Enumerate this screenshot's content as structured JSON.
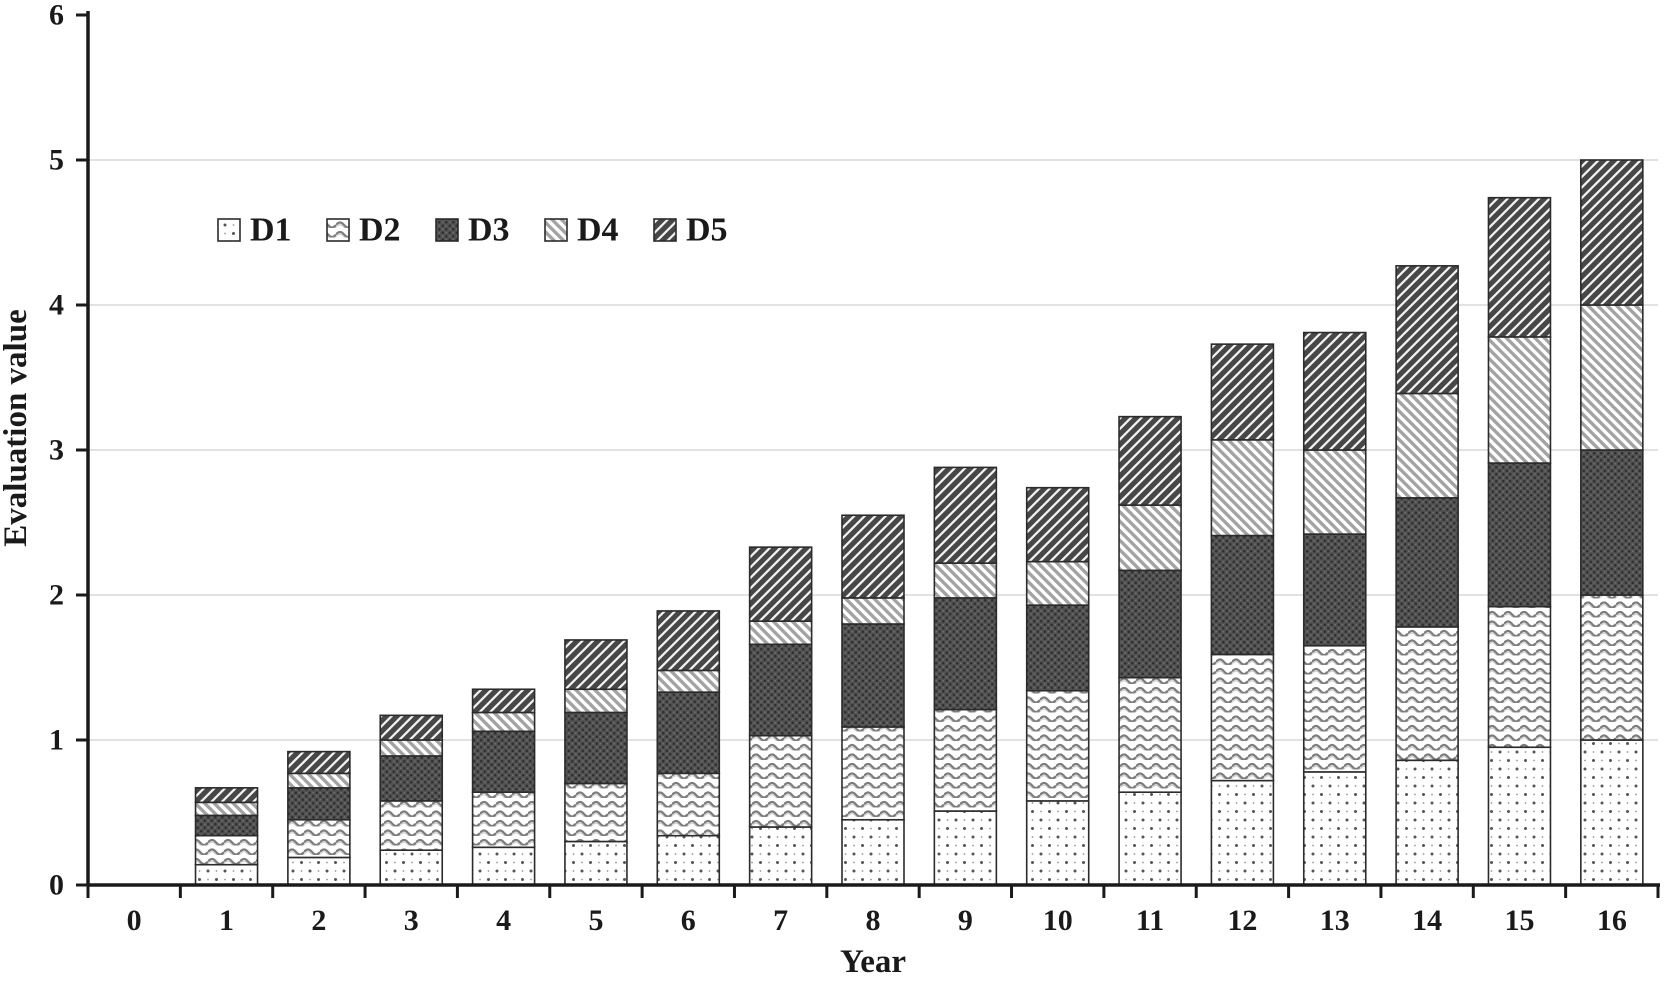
{
  "figure": {
    "background": "#ffffff"
  },
  "chart_data": {
    "type": "bar",
    "stacked": true,
    "title": "",
    "xlabel": "Year",
    "ylabel": "Evaluation value",
    "categories": [
      "0",
      "1",
      "2",
      "3",
      "4",
      "5",
      "6",
      "7",
      "8",
      "9",
      "10",
      "11",
      "12",
      "13",
      "14",
      "15",
      "16"
    ],
    "yticks": [
      "0",
      "1",
      "2",
      "3",
      "4",
      "5",
      "6"
    ],
    "ylim": [
      0,
      6
    ],
    "grid": "horizontal-light",
    "legend_position": "inside-top-left",
    "series": [
      {
        "name": "D1",
        "pattern": "dots",
        "fg": "#555555",
        "bg": "#ffffff",
        "values": [
          0,
          0.14,
          0.19,
          0.24,
          0.26,
          0.3,
          0.34,
          0.4,
          0.45,
          0.51,
          0.58,
          0.64,
          0.72,
          0.78,
          0.86,
          0.95,
          1.0
        ]
      },
      {
        "name": "D2",
        "pattern": "waves",
        "fg": "#7d7d7d",
        "bg": "#ffffff",
        "values": [
          0,
          0.2,
          0.26,
          0.34,
          0.38,
          0.4,
          0.43,
          0.63,
          0.64,
          0.7,
          0.76,
          0.79,
          0.87,
          0.87,
          0.92,
          0.97,
          1.0
        ]
      },
      {
        "name": "D3",
        "pattern": "speckle-dark",
        "fg": "#2e2e2e",
        "bg": "#525252",
        "values": [
          0,
          0.14,
          0.22,
          0.31,
          0.42,
          0.49,
          0.56,
          0.63,
          0.71,
          0.77,
          0.59,
          0.74,
          0.82,
          0.77,
          0.89,
          0.99,
          1.0
        ]
      },
      {
        "name": "D4",
        "pattern": "stripes-backslash",
        "fg": "#a3a3a3",
        "bg": "#ffffff",
        "values": [
          0,
          0.09,
          0.1,
          0.11,
          0.13,
          0.16,
          0.15,
          0.16,
          0.18,
          0.24,
          0.3,
          0.45,
          0.66,
          0.58,
          0.72,
          0.87,
          1.0
        ]
      },
      {
        "name": "D5",
        "pattern": "stripes-slash",
        "fg": "#474747",
        "bg": "#f2f2f2",
        "values": [
          0,
          0.1,
          0.15,
          0.17,
          0.16,
          0.34,
          0.41,
          0.51,
          0.57,
          0.66,
          0.51,
          0.61,
          0.66,
          0.81,
          0.88,
          0.96,
          1.0
        ]
      }
    ],
    "totals": [
      0,
      0.67,
      0.92,
      1.17,
      1.35,
      1.69,
      1.89,
      2.33,
      2.55,
      2.88,
      2.74,
      3.23,
      3.73,
      3.81,
      4.27,
      4.74,
      5.0
    ],
    "colors": {
      "axis": "#1a1a1a",
      "grid": "#d9d9d9",
      "text": "#1a1a1a",
      "bar_border": "#2b2b2b"
    }
  }
}
